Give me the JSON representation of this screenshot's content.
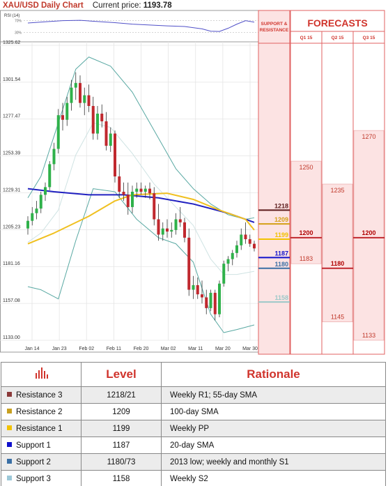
{
  "header": {
    "title": "XAU/USD Daily Chart",
    "price_label": "Current price:",
    "price_value": "1193.78"
  },
  "rsi": {
    "label": "RSI (14)",
    "levels": [
      "70%",
      "30%"
    ]
  },
  "forecast_panel": {
    "support_resistance_label": [
      "SUPPORT &",
      "RESISTANCE"
    ],
    "title": "FORECASTS",
    "quarters": [
      "Q1 15",
      "Q2 15",
      "Q3 15"
    ],
    "levels": [
      {
        "value": "1218",
        "price": 1218,
        "color": "#5b1a1a"
      },
      {
        "value": "1209",
        "price": 1209,
        "color": "#d4a017"
      },
      {
        "value": "1199",
        "price": 1199,
        "color": "#f2c200"
      },
      {
        "value": "1187",
        "price": 1187,
        "color": "#1010cc"
      },
      {
        "value": "1180",
        "price": 1180,
        "color": "#3a6fa5"
      },
      {
        "value": "1158",
        "price": 1158,
        "color": "#9cc8c8"
      }
    ],
    "forecasts": [
      {
        "quarter": "Q1 15",
        "high": "1250",
        "avg": "1200",
        "low": "1183"
      },
      {
        "quarter": "Q2 15",
        "high": "1235",
        "avg": "1180",
        "low": "1145"
      },
      {
        "quarter": "Q3 15",
        "high": "1270",
        "avg": "1200",
        "low": "1133"
      }
    ]
  },
  "chart_data": {
    "type": "candlestick",
    "title": "XAU/USD Daily Chart",
    "ylim": [
      1133.0,
      1325.62
    ],
    "yticks": [
      1325.62,
      1301.54,
      1277.47,
      1253.39,
      1229.31,
      1205.23,
      1181.16,
      1157.08,
      1133.0
    ],
    "xticks": [
      "Jan 14",
      "Jan 23",
      "Feb 02",
      "Feb 11",
      "Feb 20",
      "Mar 02",
      "Mar 11",
      "Mar 20",
      "Mar 30"
    ],
    "candles": [
      [
        1206,
        1214,
        1202,
        1211
      ],
      [
        1211,
        1220,
        1208,
        1216
      ],
      [
        1216,
        1224,
        1212,
        1219
      ],
      [
        1219,
        1230,
        1216,
        1228
      ],
      [
        1228,
        1236,
        1224,
        1233
      ],
      [
        1233,
        1250,
        1231,
        1248
      ],
      [
        1248,
        1262,
        1244,
        1258
      ],
      [
        1258,
        1284,
        1255,
        1280
      ],
      [
        1280,
        1288,
        1270,
        1277
      ],
      [
        1277,
        1292,
        1273,
        1288
      ],
      [
        1288,
        1303,
        1283,
        1298
      ],
      [
        1298,
        1308,
        1290,
        1301
      ],
      [
        1301,
        1306,
        1285,
        1288
      ],
      [
        1288,
        1298,
        1280,
        1293
      ],
      [
        1293,
        1300,
        1282,
        1286
      ],
      [
        1286,
        1292,
        1264,
        1268
      ],
      [
        1268,
        1286,
        1264,
        1281
      ],
      [
        1281,
        1287,
        1272,
        1276
      ],
      [
        1276,
        1282,
        1257,
        1260
      ],
      [
        1260,
        1272,
        1256,
        1268
      ],
      [
        1268,
        1270,
        1236,
        1240
      ],
      [
        1240,
        1248,
        1226,
        1230
      ],
      [
        1230,
        1236,
        1224,
        1228
      ],
      [
        1228,
        1236,
        1215,
        1220
      ],
      [
        1220,
        1234,
        1216,
        1230
      ],
      [
        1230,
        1236,
        1226,
        1232
      ],
      [
        1232,
        1236,
        1228,
        1230
      ],
      [
        1230,
        1234,
        1226,
        1232
      ],
      [
        1232,
        1236,
        1225,
        1229
      ],
      [
        1229,
        1233,
        1208,
        1212
      ],
      [
        1212,
        1222,
        1198,
        1202
      ],
      [
        1202,
        1210,
        1198,
        1206
      ],
      [
        1206,
        1212,
        1200,
        1204
      ],
      [
        1204,
        1210,
        1200,
        1205
      ],
      [
        1205,
        1216,
        1202,
        1212
      ],
      [
        1212,
        1220,
        1207,
        1210
      ],
      [
        1210,
        1213,
        1197,
        1200
      ],
      [
        1200,
        1206,
        1162,
        1166
      ],
      [
        1166,
        1175,
        1160,
        1169
      ],
      [
        1169,
        1174,
        1160,
        1163
      ],
      [
        1163,
        1172,
        1157,
        1161
      ],
      [
        1161,
        1166,
        1150,
        1154
      ],
      [
        1154,
        1166,
        1152,
        1164
      ],
      [
        1164,
        1166,
        1146,
        1150
      ],
      [
        1150,
        1172,
        1148,
        1170
      ],
      [
        1170,
        1185,
        1168,
        1183
      ],
      [
        1183,
        1188,
        1178,
        1186
      ],
      [
        1186,
        1192,
        1182,
        1190
      ],
      [
        1190,
        1198,
        1187,
        1195
      ],
      [
        1195,
        1206,
        1192,
        1202
      ],
      [
        1202,
        1210,
        1196,
        1199
      ],
      [
        1199,
        1202,
        1194,
        1196
      ],
      [
        1196,
        1198,
        1191,
        1193
      ]
    ],
    "sma_blue": [
      [
        0,
        1232
      ],
      [
        6,
        1230
      ],
      [
        14,
        1228
      ],
      [
        22,
        1228
      ],
      [
        30,
        1226
      ],
      [
        38,
        1222
      ],
      [
        46,
        1216
      ],
      [
        52,
        1210
      ]
    ],
    "sma_yellow": [
      [
        0,
        1196
      ],
      [
        6,
        1203
      ],
      [
        14,
        1214
      ],
      [
        20,
        1224
      ],
      [
        24,
        1228
      ],
      [
        32,
        1229
      ],
      [
        38,
        1225
      ],
      [
        44,
        1218
      ],
      [
        50,
        1212
      ],
      [
        52,
        1205
      ]
    ],
    "bb_upper": [
      [
        0,
        1226
      ],
      [
        3,
        1240
      ],
      [
        7,
        1275
      ],
      [
        11,
        1310
      ],
      [
        14,
        1318
      ],
      [
        19,
        1312
      ],
      [
        24,
        1295
      ],
      [
        29,
        1270
      ],
      [
        34,
        1245
      ],
      [
        38,
        1232
      ],
      [
        42,
        1222
      ],
      [
        46,
        1215
      ],
      [
        50,
        1212
      ],
      [
        52,
        1213
      ]
    ],
    "bb_lower": [
      [
        0,
        1168
      ],
      [
        3,
        1166
      ],
      [
        7,
        1160
      ],
      [
        11,
        1198
      ],
      [
        15,
        1232
      ],
      [
        20,
        1230
      ],
      [
        25,
        1212
      ],
      [
        30,
        1200
      ],
      [
        34,
        1196
      ],
      [
        38,
        1184
      ],
      [
        42,
        1150
      ],
      [
        45,
        1138
      ],
      [
        48,
        1140
      ],
      [
        52,
        1143
      ]
    ],
    "bb_mid": [
      [
        0,
        1197
      ],
      [
        3,
        1203
      ],
      [
        7,
        1218
      ],
      [
        11,
        1254
      ],
      [
        15,
        1275
      ],
      [
        19,
        1272
      ],
      [
        24,
        1255
      ],
      [
        29,
        1235
      ],
      [
        34,
        1220
      ],
      [
        38,
        1208
      ],
      [
        42,
        1186
      ],
      [
        45,
        1176
      ],
      [
        48,
        1176
      ],
      [
        52,
        1178
      ]
    ],
    "rsi_values": [
      [
        0,
        62
      ],
      [
        4,
        66
      ],
      [
        8,
        70
      ],
      [
        12,
        71
      ],
      [
        16,
        67
      ],
      [
        20,
        63
      ],
      [
        24,
        58
      ],
      [
        28,
        55
      ],
      [
        32,
        52
      ],
      [
        36,
        50
      ],
      [
        40,
        42
      ],
      [
        42,
        34
      ],
      [
        44,
        33
      ],
      [
        46,
        44
      ],
      [
        48,
        58
      ],
      [
        50,
        70
      ],
      [
        52,
        65
      ]
    ]
  },
  "table": {
    "headers": [
      "Level",
      "Rationale"
    ],
    "header_icon": "bar-chart-icon",
    "rows": [
      {
        "name": "Resistance 3",
        "level": "1218/21",
        "rationale": "Weekly R1; 55-day SMA",
        "color": "#8b3a3a"
      },
      {
        "name": "Resistance 2",
        "level": "1209",
        "rationale": "100-day SMA",
        "color": "#c8a020"
      },
      {
        "name": "Resistance 1",
        "level": "1199",
        "rationale": "Weekly PP",
        "color": "#f2c200"
      },
      {
        "name": "Support 1",
        "level": "1187",
        "rationale": "20-day SMA",
        "color": "#1010cc"
      },
      {
        "name": "Support 2",
        "level": "1180/73",
        "rationale": "2013 low; weekly and monthly S1",
        "color": "#3a6fa5"
      },
      {
        "name": "Support 3",
        "level": "1158",
        "rationale": "Weekly S2",
        "color": "#9cc8d8"
      }
    ]
  }
}
